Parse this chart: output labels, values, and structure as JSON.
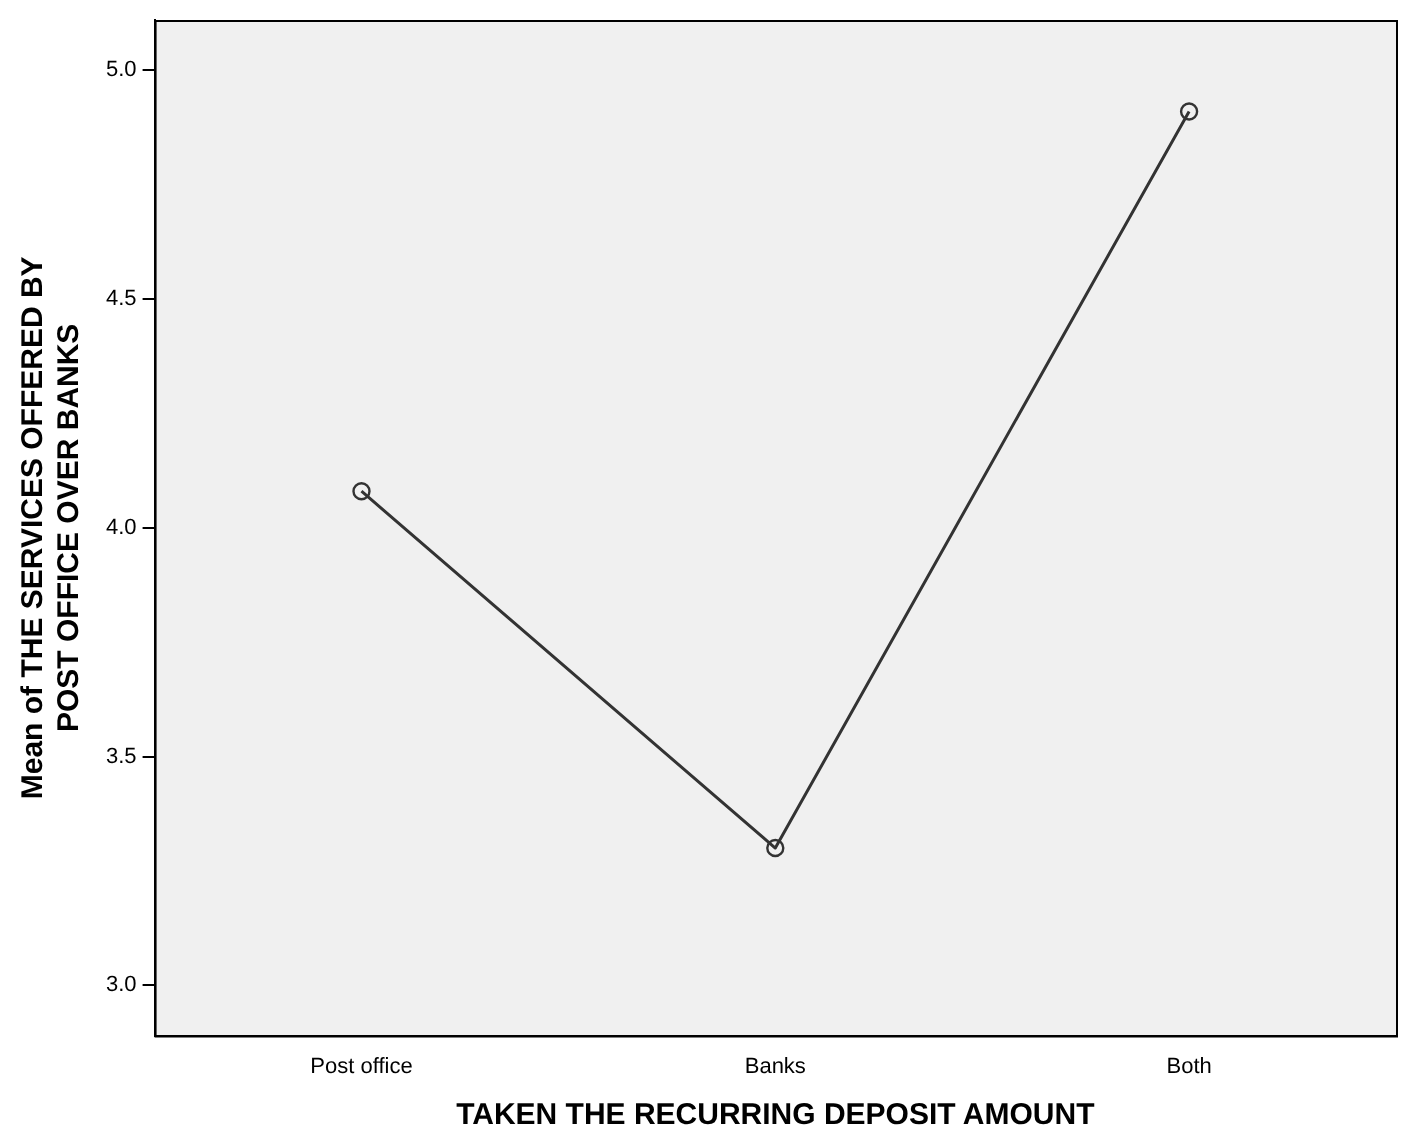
{
  "chart_data": {
    "type": "line",
    "xlabel": "TAKEN THE RECURRING DEPOSIT AMOUNT",
    "ylabel": "Mean of THE SERVICES OFFERED BY POST OFFICE OVER BANKS",
    "categories": [
      "Post office",
      "Banks",
      "Both"
    ],
    "series": [
      {
        "color": "#333333",
        "values": [
          4.08,
          3.3,
          4.91
        ]
      }
    ],
    "ylim": [
      2.89,
      5.11
    ],
    "yticks": [
      {
        "value": 3,
        "label": "3.0"
      },
      {
        "value": 3.5,
        "label": "3.5"
      },
      {
        "value": 4,
        "label": "4.0"
      },
      {
        "value": 4.5,
        "label": "4.5"
      },
      {
        "value": 5,
        "label": "5.0"
      }
    ],
    "grid": false,
    "legend": false,
    "marker": "circle",
    "line_style": "solid"
  }
}
